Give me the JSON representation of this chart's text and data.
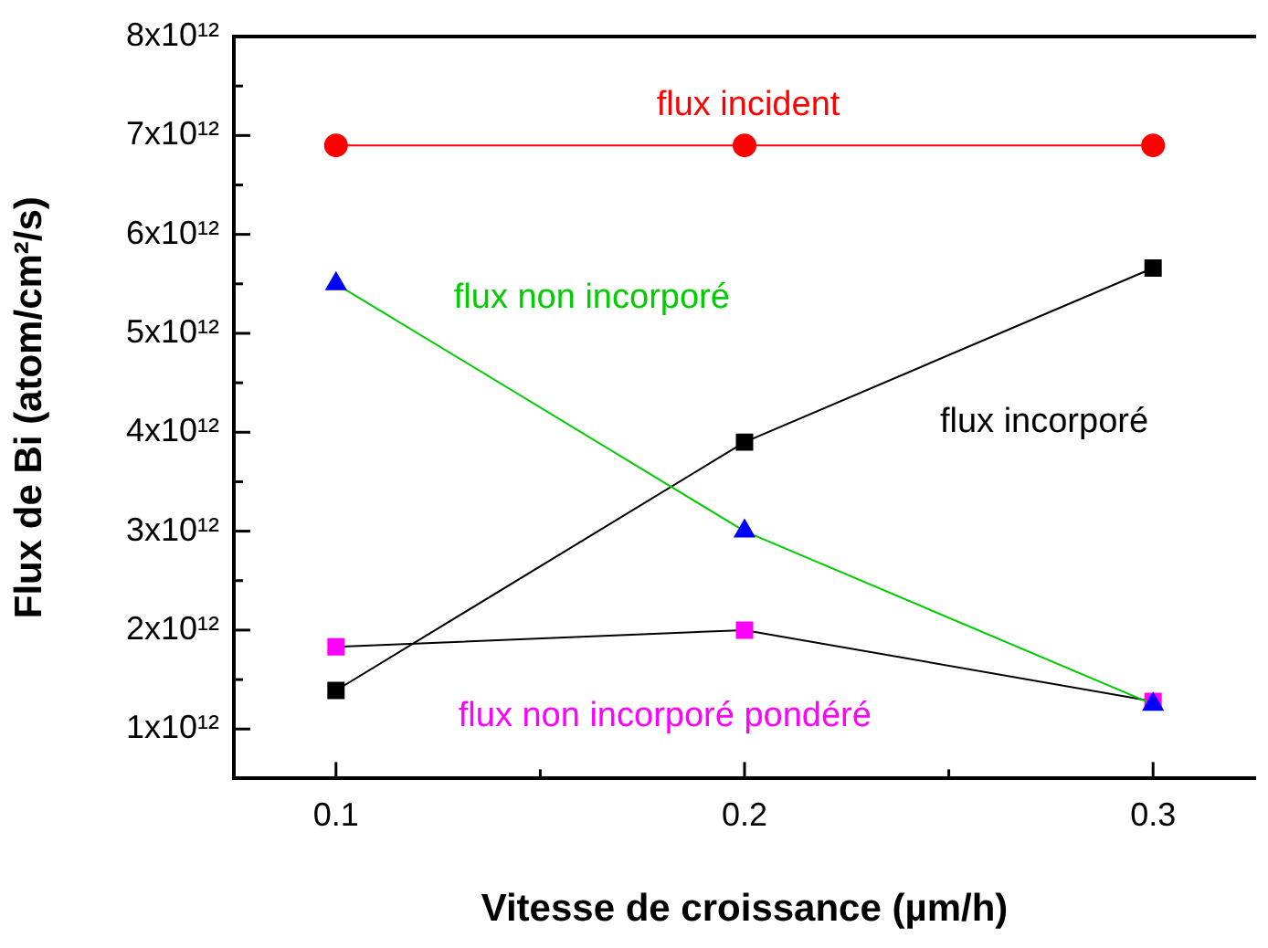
{
  "chart_data": {
    "type": "line",
    "xlabel": "Vitesse de croissance (µm/h)",
    "ylabel": "Flux de Bi (atom/cm²/s)",
    "x": [
      0.1,
      0.2,
      0.3
    ],
    "xlim": [
      0.075,
      0.325
    ],
    "xticks": [
      0.1,
      {
        "value": 0.15,
        "label": null
      },
      0.2,
      {
        "value": 0.25,
        "label": null
      },
      0.3
    ],
    "ylim": [
      500000000000,
      8000000000000
    ],
    "yticks": [
      {
        "value": 1000000000000,
        "label": "1x10¹²"
      },
      {
        "value": 1500000000000,
        "label": null
      },
      {
        "value": 2000000000000,
        "label": "2x10¹²"
      },
      {
        "value": 2500000000000,
        "label": null
      },
      {
        "value": 3000000000000,
        "label": "3x10¹²"
      },
      {
        "value": 3500000000000,
        "label": null
      },
      {
        "value": 4000000000000,
        "label": "4x10¹²"
      },
      {
        "value": 4500000000000,
        "label": null
      },
      {
        "value": 5000000000000,
        "label": "5x10¹²"
      },
      {
        "value": 5500000000000,
        "label": null
      },
      {
        "value": 6000000000000,
        "label": "6x10¹²"
      },
      {
        "value": 6500000000000,
        "label": null
      },
      {
        "value": 7000000000000,
        "label": "7x10¹²"
      },
      {
        "value": 7500000000000,
        "label": null
      },
      {
        "value": 8000000000000,
        "label": "8x10¹²"
      }
    ],
    "grid": false,
    "legend": false,
    "series": [
      {
        "name": "flux incident",
        "color": "#ff0000",
        "marker": "circle",
        "values": [
          6900000000000,
          6900000000000,
          6900000000000
        ]
      },
      {
        "name": "flux non incorporé",
        "color": "#00cc00",
        "colors": [
          "#0000ff",
          "#0000ff",
          "#0000ff"
        ],
        "marker": "triangle",
        "values": [
          5500000000000,
          3000000000000,
          1250000000000
        ]
      },
      {
        "name": "flux incorporé",
        "color": "#000000",
        "marker": "square",
        "values": [
          1390000000000,
          3900000000000,
          5660000000000
        ]
      },
      {
        "name": "flux non incorporé pondéré",
        "color": "#000000",
        "colors": [
          "#ff00ff",
          "#ff00ff",
          "#ff00ff"
        ],
        "marker": "square",
        "values": [
          1830000000000,
          2000000000000,
          1280000000000
        ]
      }
    ]
  }
}
